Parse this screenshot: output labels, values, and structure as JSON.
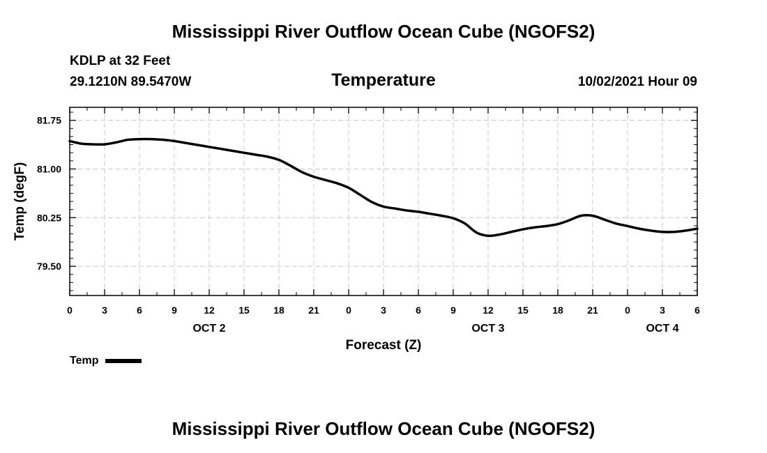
{
  "header": {
    "title": "Mississippi River Outflow Ocean Cube (NGOFS2)",
    "station": "KDLP at 32 Feet",
    "coords": "29.1210N  89.5470W",
    "chart_title": "Temperature",
    "datetime": "10/02/2021 Hour 09"
  },
  "footer": {
    "title": "Mississippi River Outflow Ocean Cube (NGOFS2)"
  },
  "legend": {
    "label": "Temp"
  },
  "chart_data": {
    "type": "line",
    "title": "Temperature",
    "xlabel": "Forecast (Z)",
    "ylabel": "Temp (degF)",
    "xlim": [
      0,
      54
    ],
    "ylim": [
      79.05,
      81.95
    ],
    "yticks": [
      79.5,
      80.25,
      81.0,
      81.75
    ],
    "ytick_labels": [
      "79.50",
      "80.25",
      "81.00",
      "81.75"
    ],
    "xticks": [
      0,
      3,
      6,
      9,
      12,
      15,
      18,
      21,
      24,
      27,
      30,
      33,
      36,
      39,
      42,
      45,
      48,
      51,
      54
    ],
    "xtick_labels": [
      "0",
      "3",
      "6",
      "9",
      "12",
      "15",
      "18",
      "21",
      "0",
      "3",
      "6",
      "9",
      "12",
      "15",
      "18",
      "21",
      "0",
      "3",
      "6"
    ],
    "date_labels": [
      {
        "x": 12,
        "label": "OCT 2"
      },
      {
        "x": 36,
        "label": "OCT 3"
      },
      {
        "x": 51,
        "label": "OCT 4"
      }
    ],
    "grid": true,
    "series": [
      {
        "name": "Temp",
        "color": "#000000",
        "x": [
          0,
          1,
          2,
          3,
          4,
          5,
          6,
          7,
          8,
          9,
          10,
          11,
          12,
          13,
          14,
          15,
          16,
          17,
          18,
          19,
          20,
          21,
          22,
          23,
          24,
          25,
          26,
          27,
          28,
          29,
          30,
          31,
          32,
          33,
          34,
          35,
          36,
          37,
          38,
          39,
          40,
          41,
          42,
          43,
          44,
          45,
          46,
          47,
          48,
          49,
          50,
          51,
          52,
          53,
          54
        ],
        "values": [
          81.43,
          81.39,
          81.38,
          81.38,
          81.41,
          81.45,
          81.46,
          81.46,
          81.45,
          81.43,
          81.4,
          81.37,
          81.34,
          81.31,
          81.28,
          81.25,
          81.22,
          81.19,
          81.14,
          81.05,
          80.95,
          80.88,
          80.83,
          80.78,
          80.71,
          80.6,
          80.49,
          80.42,
          80.39,
          80.36,
          80.34,
          80.31,
          80.28,
          80.24,
          80.16,
          80.02,
          79.97,
          79.99,
          80.03,
          80.07,
          80.1,
          80.12,
          80.15,
          80.21,
          80.28,
          80.28,
          80.22,
          80.16,
          80.12,
          80.08,
          80.05,
          80.03,
          80.03,
          80.05,
          80.08
        ]
      }
    ]
  }
}
